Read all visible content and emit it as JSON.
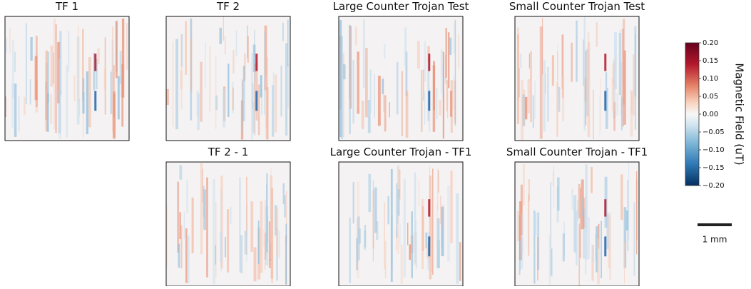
{
  "panels": [
    {
      "title": "TF 1"
    },
    {
      "title": "TF 2"
    },
    {
      "title": "Large Counter Trojan Test"
    },
    {
      "title": "Small Counter Trojan Test"
    },
    {
      "title": "TF 2 - 1"
    },
    {
      "title": "Large Counter Trojan - TF1"
    },
    {
      "title": "Small Counter Trojan - TF1"
    }
  ],
  "colorbar": {
    "label": "Magnetic Field (uT)",
    "lim": [
      -0.2,
      0.2
    ],
    "ticks": [
      {
        "value": 0.2,
        "label": "0.20"
      },
      {
        "value": 0.15,
        "label": "0.15"
      },
      {
        "value": 0.1,
        "label": "0.10"
      },
      {
        "value": 0.05,
        "label": "0.05"
      },
      {
        "value": 0,
        "label": "0.00"
      },
      {
        "value": -0.05,
        "label": "−0.05"
      },
      {
        "value": -0.1,
        "label": "−0.10"
      },
      {
        "value": -0.15,
        "label": "−0.15"
      },
      {
        "value": -0.2,
        "label": "−0.20"
      }
    ]
  },
  "scale_bar": {
    "label": "1 mm"
  }
}
